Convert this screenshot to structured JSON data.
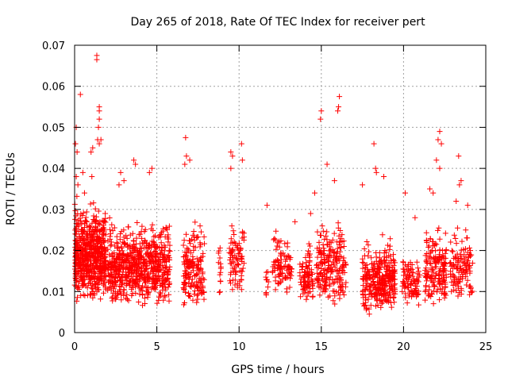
{
  "chart_data": {
    "type": "scatter",
    "title": "Day 265 of 2018, Rate Of TEC Index for receiver pert",
    "xlabel": "GPS time / hours",
    "ylabel": "ROTI / TECUs",
    "xlim": [
      0,
      25
    ],
    "ylim": [
      0,
      0.07
    ],
    "x_ticks": [
      0,
      5,
      10,
      15,
      20,
      25
    ],
    "x_tick_labels": [
      "0",
      "5",
      "10",
      "15",
      "20",
      "25"
    ],
    "y_ticks": [
      0,
      0.01,
      0.02,
      0.03,
      0.04,
      0.05,
      0.06,
      0.07
    ],
    "y_tick_labels": [
      "0",
      "0.01",
      "0.02",
      "0.03",
      "0.04",
      "0.05",
      "0.06",
      "0.07"
    ],
    "grid": true,
    "marker": "+",
    "color": "#ff0000",
    "series": [
      {
        "name": "ROTI",
        "points": [
          [
            0.05,
            0.046
          ],
          [
            0.1,
            0.05
          ],
          [
            0.1,
            0.038
          ],
          [
            0.15,
            0.044
          ],
          [
            0.2,
            0.036
          ],
          [
            0.35,
            0.058
          ],
          [
            0.5,
            0.039
          ],
          [
            0.6,
            0.034
          ],
          [
            1.0,
            0.044
          ],
          [
            1.05,
            0.038
          ],
          [
            1.1,
            0.045
          ],
          [
            1.35,
            0.0675
          ],
          [
            1.35,
            0.0665
          ],
          [
            1.5,
            0.055
          ],
          [
            1.5,
            0.054
          ],
          [
            1.5,
            0.052
          ],
          [
            1.45,
            0.05
          ],
          [
            1.4,
            0.047
          ],
          [
            1.5,
            0.046
          ],
          [
            1.6,
            0.047
          ],
          [
            2.7,
            0.036
          ],
          [
            2.8,
            0.039
          ],
          [
            3.0,
            0.037
          ],
          [
            3.6,
            0.042
          ],
          [
            3.7,
            0.041
          ],
          [
            4.55,
            0.039
          ],
          [
            4.7,
            0.04
          ],
          [
            6.75,
            0.0475
          ],
          [
            6.8,
            0.043
          ],
          [
            6.7,
            0.041
          ],
          [
            7.0,
            0.042
          ],
          [
            9.5,
            0.044
          ],
          [
            9.6,
            0.043
          ],
          [
            9.5,
            0.04
          ],
          [
            10.15,
            0.046
          ],
          [
            10.2,
            0.042
          ],
          [
            11.7,
            0.031
          ],
          [
            13.4,
            0.027
          ],
          [
            14.35,
            0.029
          ],
          [
            14.6,
            0.034
          ],
          [
            15.0,
            0.054
          ],
          [
            14.95,
            0.052
          ],
          [
            15.35,
            0.041
          ],
          [
            15.8,
            0.037
          ],
          [
            16.1,
            0.0575
          ],
          [
            16.05,
            0.055
          ],
          [
            16.0,
            0.054
          ],
          [
            17.5,
            0.036
          ],
          [
            18.2,
            0.046
          ],
          [
            18.3,
            0.04
          ],
          [
            18.35,
            0.039
          ],
          [
            18.8,
            0.038
          ],
          [
            20.1,
            0.034
          ],
          [
            20.7,
            0.028
          ],
          [
            21.6,
            0.035
          ],
          [
            21.8,
            0.034
          ],
          [
            22.0,
            0.042
          ],
          [
            22.1,
            0.047
          ],
          [
            22.2,
            0.049
          ],
          [
            22.3,
            0.046
          ],
          [
            22.2,
            0.04
          ],
          [
            23.35,
            0.043
          ],
          [
            23.4,
            0.036
          ],
          [
            23.5,
            0.037
          ],
          [
            23.2,
            0.032
          ],
          [
            23.9,
            0.031
          ],
          [
            24.1,
            0.01
          ]
        ],
        "clusters": [
          {
            "x": [
              0.0,
              1.9
            ],
            "y": [
              0.007,
              0.034
            ],
            "n": 620,
            "seed": 11
          },
          {
            "x": [
              2.0,
              5.8
            ],
            "y": [
              0.006,
              0.03
            ],
            "n": 700,
            "seed": 23
          },
          {
            "x": [
              6.6,
              7.9
            ],
            "y": [
              0.005,
              0.028
            ],
            "n": 170,
            "seed": 37
          },
          {
            "x": [
              8.7,
              8.9
            ],
            "y": [
              0.008,
              0.026
            ],
            "n": 14,
            "seed": 41
          },
          {
            "x": [
              9.4,
              10.3
            ],
            "y": [
              0.008,
              0.032
            ],
            "n": 80,
            "seed": 53
          },
          {
            "x": [
              11.6,
              11.8
            ],
            "y": [
              0.008,
              0.018
            ],
            "n": 10,
            "seed": 59
          },
          {
            "x": [
              12.0,
              13.2
            ],
            "y": [
              0.008,
              0.026
            ],
            "n": 95,
            "seed": 61
          },
          {
            "x": [
              13.7,
              14.5
            ],
            "y": [
              0.007,
              0.023
            ],
            "n": 90,
            "seed": 71
          },
          {
            "x": [
              14.7,
              16.5
            ],
            "y": [
              0.006,
              0.03
            ],
            "n": 210,
            "seed": 79
          },
          {
            "x": [
              17.5,
              19.5
            ],
            "y": [
              0.004,
              0.025
            ],
            "n": 330,
            "seed": 83
          },
          {
            "x": [
              19.9,
              21.0
            ],
            "y": [
              0.006,
              0.021
            ],
            "n": 90,
            "seed": 89
          },
          {
            "x": [
              21.3,
              22.6
            ],
            "y": [
              0.006,
              0.028
            ],
            "n": 170,
            "seed": 97
          },
          {
            "x": [
              22.8,
              24.2
            ],
            "y": [
              0.007,
              0.028
            ],
            "n": 120,
            "seed": 101
          }
        ]
      }
    ]
  }
}
